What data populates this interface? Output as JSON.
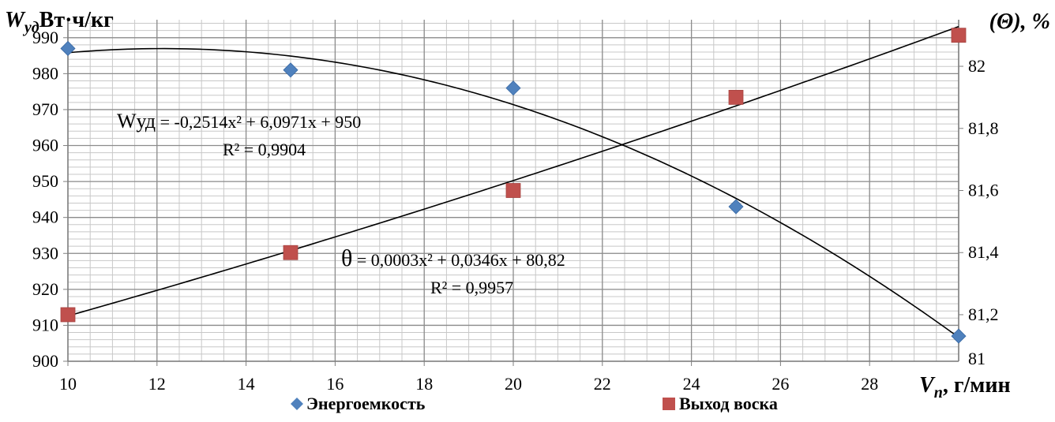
{
  "chart_data": {
    "type": "scatter",
    "x_axis": {
      "min": 10,
      "max": 30,
      "ticks": [
        10,
        12,
        14,
        16,
        18,
        20,
        22,
        24,
        26,
        28
      ],
      "tick_labels": [
        "10",
        "12",
        "14",
        "16",
        "18",
        "20",
        "22",
        "24",
        "26",
        "28"
      ],
      "label_var": "V",
      "label_sub": "п",
      "label_rest": ", г/мин",
      "minor_step": 0.5
    },
    "y_left": {
      "min": 900,
      "max": 995,
      "ticks": [
        900,
        910,
        920,
        930,
        940,
        950,
        960,
        970,
        980,
        990
      ],
      "tick_labels": [
        "900",
        "910",
        "920",
        "930",
        "940",
        "950",
        "960",
        "970",
        "980",
        "990"
      ],
      "label_var": "W",
      "label_sub": "уд",
      "label_rest": "Вт·ч/кг",
      "minor_step": 2
    },
    "y_right": {
      "min": 81.05,
      "max": 82.15,
      "ticks": [
        81.2,
        81.4,
        81.6,
        81.8,
        82.0
      ],
      "tick_labels": [
        "81,2",
        "81,4",
        "81,6",
        "81,8",
        "82"
      ],
      "cut_tick_label": "81",
      "label": "(Θ), %"
    },
    "series": [
      {
        "name": "Энергоемкость",
        "axis": "left",
        "marker": "diamond",
        "color": "#4F81BD",
        "x": [
          10,
          15,
          20,
          25,
          30
        ],
        "y": [
          987,
          981,
          976,
          943,
          907
        ],
        "trendline": {
          "type": "poly2",
          "coeffs": [
            950,
            6.0971,
            -0.2514
          ],
          "equation_lhs": "Wуд",
          "equation_rhs": " = -0,2514x² + 6,0971x + 950",
          "r2": "R² = 0,9904"
        }
      },
      {
        "name": "Выход воска",
        "axis": "right",
        "marker": "square",
        "color": "#C0504D",
        "x": [
          10,
          15,
          20,
          25,
          30
        ],
        "y": [
          81.2,
          81.4,
          81.6,
          81.9,
          82.1
        ],
        "trendline": {
          "type": "poly2",
          "coeffs": [
            80.82,
            0.0346,
            0.0003
          ],
          "equation_lhs": "θ",
          "equation_rhs": " = 0,0003x² + 0,0346x + 80,82",
          "r2": "R² = 0,9957"
        }
      }
    ],
    "grid": true,
    "legend_position": "bottom"
  }
}
